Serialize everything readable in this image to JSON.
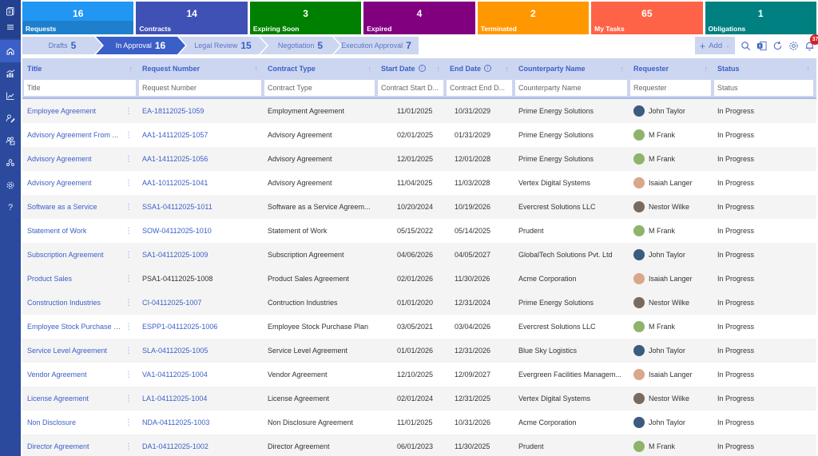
{
  "sidebar": {
    "items": [
      {
        "name": "logo-icon"
      },
      {
        "name": "menu-icon"
      },
      {
        "name": "home-icon",
        "active": true
      },
      {
        "name": "analytics-icon"
      },
      {
        "name": "trend-chart-icon"
      },
      {
        "name": "user-edit-icon"
      },
      {
        "name": "team-icon"
      },
      {
        "name": "user-group-icon"
      },
      {
        "name": "settings-icon"
      },
      {
        "name": "help-icon"
      }
    ]
  },
  "tiles": [
    {
      "count": "16",
      "label": "Requests",
      "color": "#2196f3",
      "band": "#1e7fcc"
    },
    {
      "count": "14",
      "label": "Contracts",
      "color": "#3f51b5",
      "band": "#3f51b5"
    },
    {
      "count": "3",
      "label": "Expiring Soon",
      "color": "#008000",
      "band": "#008000"
    },
    {
      "count": "4",
      "label": "Expired",
      "color": "#800080",
      "band": "#800080"
    },
    {
      "count": "2",
      "label": "Terminated",
      "color": "#ff9800",
      "band": "#ff9800"
    },
    {
      "count": "65",
      "label": "My Tasks",
      "color": "#ff6347",
      "band": "#ff6347"
    },
    {
      "count": "1",
      "label": "Obligations",
      "color": "#008080",
      "band": "#008080"
    }
  ],
  "steps": [
    {
      "label": "Drafts",
      "count": "5"
    },
    {
      "label": "In Approval",
      "count": "16",
      "active": true
    },
    {
      "label": "Legal Review",
      "count": "15"
    },
    {
      "label": "Negotiation",
      "count": "5"
    },
    {
      "label": "Execution Approval",
      "count": "7"
    }
  ],
  "toolbar": {
    "add_label": "Add",
    "notification_count": "37"
  },
  "columns": [
    {
      "label": "Title",
      "filter_placeholder": "Title"
    },
    {
      "label": "Request Number",
      "filter_placeholder": "Request Number"
    },
    {
      "label": "Contract Type",
      "filter_placeholder": "Contract Type"
    },
    {
      "label": "Start Date",
      "filter_placeholder": "Contract Start D...",
      "info": true
    },
    {
      "label": "End Date",
      "filter_placeholder": "Contract End D...",
      "info": true
    },
    {
      "label": "Counterparty Name",
      "filter_placeholder": "Counterparty Name"
    },
    {
      "label": "Requester",
      "filter_placeholder": "Requester"
    },
    {
      "label": "Status",
      "filter_placeholder": "Status"
    }
  ],
  "colors": {
    "accent": "#3b5fc8",
    "header_bg": "#cdd6f0",
    "sidebar": "#2b4a9e"
  },
  "rows": [
    {
      "title": "Employee Agreement",
      "request_number": "EA-18112025-1059",
      "contract_type": "Employment Agreement",
      "start": "11/01/2025",
      "end": "10/31/2029",
      "counterparty": "Prime Energy Solutions",
      "requester": "John Taylor",
      "status": "In Progress"
    },
    {
      "title": "Advisory Agreement From ...",
      "request_number": "AA1-14112025-1057",
      "contract_type": "Advisory Agreement",
      "start": "02/01/2025",
      "end": "01/31/2029",
      "counterparty": "Prime Energy Solutions",
      "requester": "M Frank",
      "status": "In Progress"
    },
    {
      "title": "Advisory Agreement",
      "request_number": "AA1-14112025-1056",
      "contract_type": "Advisory Agreement",
      "start": "12/01/2025",
      "end": "12/01/2028",
      "counterparty": "Prime Energy Solutions",
      "requester": "M Frank",
      "status": "In Progress"
    },
    {
      "title": "Advisory Agreement",
      "request_number": "AA1-10112025-1041",
      "contract_type": "Advisory Agreement",
      "start": "11/04/2025",
      "end": "11/03/2028",
      "counterparty": "Vertex Digital Systems",
      "requester": "Isaiah Langer",
      "status": "In Progress"
    },
    {
      "title": "Software as a Service",
      "request_number": "SSA1-04112025-1011",
      "contract_type": "Software as a Service Agreem...",
      "start": "10/20/2024",
      "end": "10/19/2026",
      "counterparty": "Evercrest Solutions LLC",
      "requester": "Nestor Wilke",
      "status": "In Progress"
    },
    {
      "title": "Statement of Work",
      "request_number": "SOW-04112025-1010",
      "contract_type": "Statement of Work",
      "start": "05/15/2022",
      "end": "05/14/2025",
      "counterparty": "Prudent",
      "requester": "M Frank",
      "status": "In Progress"
    },
    {
      "title": "Subscription Agreement",
      "request_number": "SA1-04112025-1009",
      "contract_type": "Subscription Agreement",
      "start": "04/06/2026",
      "end": "04/05/2027",
      "counterparty": "GlobalTech Solutions Pvt. Ltd",
      "requester": "John Taylor",
      "status": "In Progress"
    },
    {
      "title": "Product Sales",
      "request_number": "PSA1-04112025-1008",
      "contract_type": "Product Sales Agreement",
      "start": "02/01/2026",
      "end": "11/30/2026",
      "counterparty": "Acme Corporation",
      "requester": "Isaiah Langer",
      "status": "In Progress",
      "req_plain": true
    },
    {
      "title": "Construction Industries",
      "request_number": "CI-04112025-1007",
      "contract_type": "Contruction Industries",
      "start": "01/01/2020",
      "end": "12/31/2024",
      "counterparty": "Prime Energy Solutions",
      "requester": "Nestor Wilke",
      "status": "In Progress"
    },
    {
      "title": "Employee Stock Purchase Pl...",
      "request_number": "ESPP1-04112025-1006",
      "contract_type": "Employee Stock Purchase Plan",
      "start": "03/05/2021",
      "end": "03/04/2026",
      "counterparty": "Evercrest Solutions LLC",
      "requester": "M Frank",
      "status": "In Progress"
    },
    {
      "title": "Service Level Agreement",
      "request_number": "SLA-04112025-1005",
      "contract_type": "Service Level Agreement",
      "start": "01/01/2026",
      "end": "12/31/2026",
      "counterparty": "Blue Sky Logistics",
      "requester": "John Taylor",
      "status": "In Progress"
    },
    {
      "title": "Vendor Agreement",
      "request_number": "VA1-04112025-1004",
      "contract_type": "Vendor Agreement",
      "start": "12/10/2025",
      "end": "12/09/2027",
      "counterparty": "Evergreen Facilities Managem...",
      "requester": "Isaiah Langer",
      "status": "In Progress"
    },
    {
      "title": "License Agreement",
      "request_number": "LA1-04112025-1004",
      "contract_type": "License Agreement",
      "start": "02/01/2024",
      "end": "12/31/2025",
      "counterparty": "Vertex Digital Systems",
      "requester": "Nestor Wilke",
      "status": "In Progress"
    },
    {
      "title": "Non Disclosure",
      "request_number": "NDA-04112025-1003",
      "contract_type": "Non Disclosure Agreement",
      "start": "11/01/2025",
      "end": "10/31/2026",
      "counterparty": "Acme Corporation",
      "requester": "John Taylor",
      "status": "In Progress"
    },
    {
      "title": "Director Agreement",
      "request_number": "DA1-04112025-1002",
      "contract_type": "Director Agreement",
      "start": "06/01/2023",
      "end": "11/30/2025",
      "counterparty": "Prudent",
      "requester": "M Frank",
      "status": "In Progress"
    }
  ],
  "avatar_colors": {
    "John Taylor": "#3d5a80",
    "M Frank": "#8fb36a",
    "Isaiah Langer": "#d9a78a",
    "Nestor Wilke": "#7a6a5e"
  }
}
